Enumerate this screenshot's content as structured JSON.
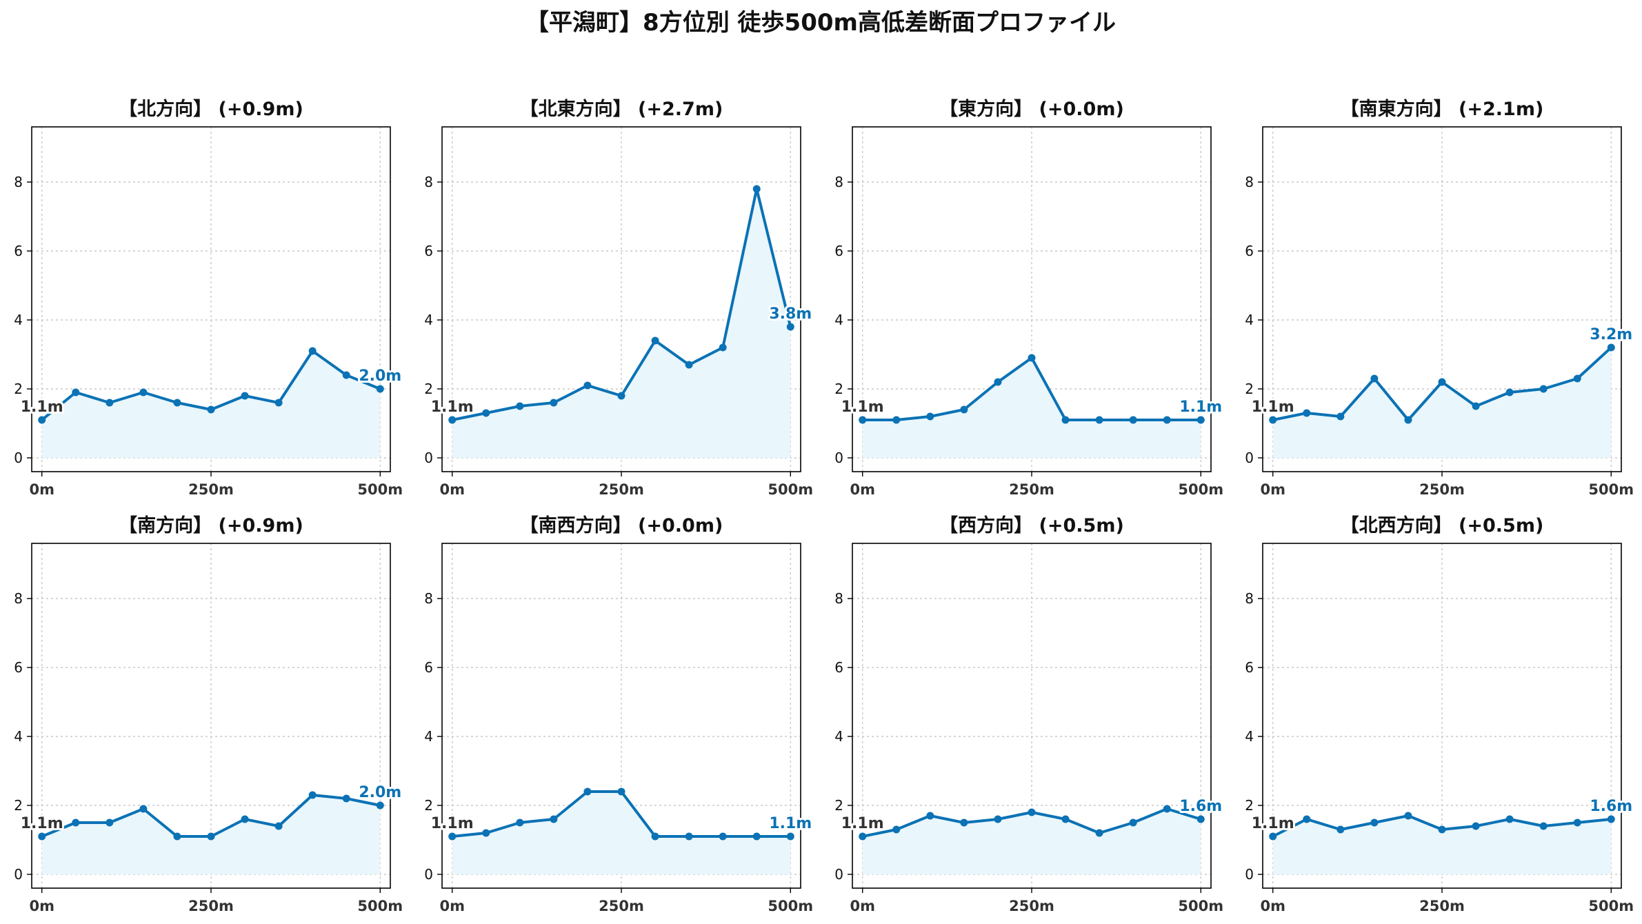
{
  "figure": {
    "title": "【平潟町】8方位別 徒歩500m高低差断面プロファイル",
    "line_color": "#0b72b5",
    "fill_color": "#e9f6fc",
    "grid_color": "#c8c8c8",
    "start_label_color": "#333333"
  },
  "chart_data": [
    {
      "type": "area",
      "title": "【北方向】 (+0.9m)",
      "x": [
        0,
        50,
        100,
        150,
        200,
        250,
        300,
        350,
        400,
        450,
        500
      ],
      "values": [
        1.1,
        1.9,
        1.6,
        1.9,
        1.6,
        1.4,
        1.8,
        1.6,
        3.1,
        2.4,
        2.0
      ],
      "start_label": "1.1m",
      "end_label": "2.0m",
      "xticks": [
        "0m",
        "250m",
        "500m"
      ],
      "xtick_values": [
        0,
        250,
        500
      ],
      "yticks": [
        0,
        2,
        4,
        6,
        8
      ],
      "xlim": [
        -15,
        515
      ],
      "ylim": [
        -0.4,
        9.6
      ],
      "grid": true
    },
    {
      "type": "area",
      "title": "【北東方向】 (+2.7m)",
      "x": [
        0,
        50,
        100,
        150,
        200,
        250,
        300,
        350,
        400,
        450,
        500
      ],
      "values": [
        1.1,
        1.3,
        1.5,
        1.6,
        2.1,
        1.8,
        3.4,
        2.7,
        3.2,
        7.8,
        3.8
      ],
      "start_label": "1.1m",
      "end_label": "3.8m",
      "xticks": [
        "0m",
        "250m",
        "500m"
      ],
      "xtick_values": [
        0,
        250,
        500
      ],
      "yticks": [
        0,
        2,
        4,
        6,
        8
      ],
      "xlim": [
        -15,
        515
      ],
      "ylim": [
        -0.4,
        9.6
      ],
      "grid": true
    },
    {
      "type": "area",
      "title": "【東方向】 (+0.0m)",
      "x": [
        0,
        50,
        100,
        150,
        200,
        250,
        300,
        350,
        400,
        450,
        500
      ],
      "values": [
        1.1,
        1.1,
        1.2,
        1.4,
        2.2,
        2.9,
        1.1,
        1.1,
        1.1,
        1.1,
        1.1
      ],
      "start_label": "1.1m",
      "end_label": "1.1m",
      "xticks": [
        "0m",
        "250m",
        "500m"
      ],
      "xtick_values": [
        0,
        250,
        500
      ],
      "yticks": [
        0,
        2,
        4,
        6,
        8
      ],
      "xlim": [
        -15,
        515
      ],
      "ylim": [
        -0.4,
        9.6
      ],
      "grid": true
    },
    {
      "type": "area",
      "title": "【南東方向】 (+2.1m)",
      "x": [
        0,
        50,
        100,
        150,
        200,
        250,
        300,
        350,
        400,
        450,
        500
      ],
      "values": [
        1.1,
        1.3,
        1.2,
        2.3,
        1.1,
        2.2,
        1.5,
        1.9,
        2.0,
        2.3,
        3.2
      ],
      "start_label": "1.1m",
      "end_label": "3.2m",
      "xticks": [
        "0m",
        "250m",
        "500m"
      ],
      "xtick_values": [
        0,
        250,
        500
      ],
      "yticks": [
        0,
        2,
        4,
        6,
        8
      ],
      "xlim": [
        -15,
        515
      ],
      "ylim": [
        -0.4,
        9.6
      ],
      "grid": true
    },
    {
      "type": "area",
      "title": "【南方向】 (+0.9m)",
      "x": [
        0,
        50,
        100,
        150,
        200,
        250,
        300,
        350,
        400,
        450,
        500
      ],
      "values": [
        1.1,
        1.5,
        1.5,
        1.9,
        1.1,
        1.1,
        1.6,
        1.4,
        2.3,
        2.2,
        2.0
      ],
      "start_label": "1.1m",
      "end_label": "2.0m",
      "xticks": [
        "0m",
        "250m",
        "500m"
      ],
      "xtick_values": [
        0,
        250,
        500
      ],
      "yticks": [
        0,
        2,
        4,
        6,
        8
      ],
      "xlim": [
        -15,
        515
      ],
      "ylim": [
        -0.4,
        9.6
      ],
      "grid": true
    },
    {
      "type": "area",
      "title": "【南西方向】 (+0.0m)",
      "x": [
        0,
        50,
        100,
        150,
        200,
        250,
        300,
        350,
        400,
        450,
        500
      ],
      "values": [
        1.1,
        1.2,
        1.5,
        1.6,
        2.4,
        2.4,
        1.1,
        1.1,
        1.1,
        1.1,
        1.1
      ],
      "start_label": "1.1m",
      "end_label": "1.1m",
      "xticks": [
        "0m",
        "250m",
        "500m"
      ],
      "xtick_values": [
        0,
        250,
        500
      ],
      "yticks": [
        0,
        2,
        4,
        6,
        8
      ],
      "xlim": [
        -15,
        515
      ],
      "ylim": [
        -0.4,
        9.6
      ],
      "grid": true
    },
    {
      "type": "area",
      "title": "【西方向】 (+0.5m)",
      "x": [
        0,
        50,
        100,
        150,
        200,
        250,
        300,
        350,
        400,
        450,
        500
      ],
      "values": [
        1.1,
        1.3,
        1.7,
        1.5,
        1.6,
        1.8,
        1.6,
        1.2,
        1.5,
        1.9,
        1.6
      ],
      "start_label": "1.1m",
      "end_label": "1.6m",
      "xticks": [
        "0m",
        "250m",
        "500m"
      ],
      "xtick_values": [
        0,
        250,
        500
      ],
      "yticks": [
        0,
        2,
        4,
        6,
        8
      ],
      "xlim": [
        -15,
        515
      ],
      "ylim": [
        -0.4,
        9.6
      ],
      "grid": true
    },
    {
      "type": "area",
      "title": "【北西方向】 (+0.5m)",
      "x": [
        0,
        50,
        100,
        150,
        200,
        250,
        300,
        350,
        400,
        450,
        500
      ],
      "values": [
        1.1,
        1.6,
        1.3,
        1.5,
        1.7,
        1.3,
        1.4,
        1.6,
        1.4,
        1.5,
        1.6
      ],
      "start_label": "1.1m",
      "end_label": "1.6m",
      "xticks": [
        "0m",
        "250m",
        "500m"
      ],
      "xtick_values": [
        0,
        250,
        500
      ],
      "yticks": [
        0,
        2,
        4,
        6,
        8
      ],
      "xlim": [
        -15,
        515
      ],
      "ylim": [
        -0.4,
        9.6
      ],
      "grid": true
    }
  ]
}
